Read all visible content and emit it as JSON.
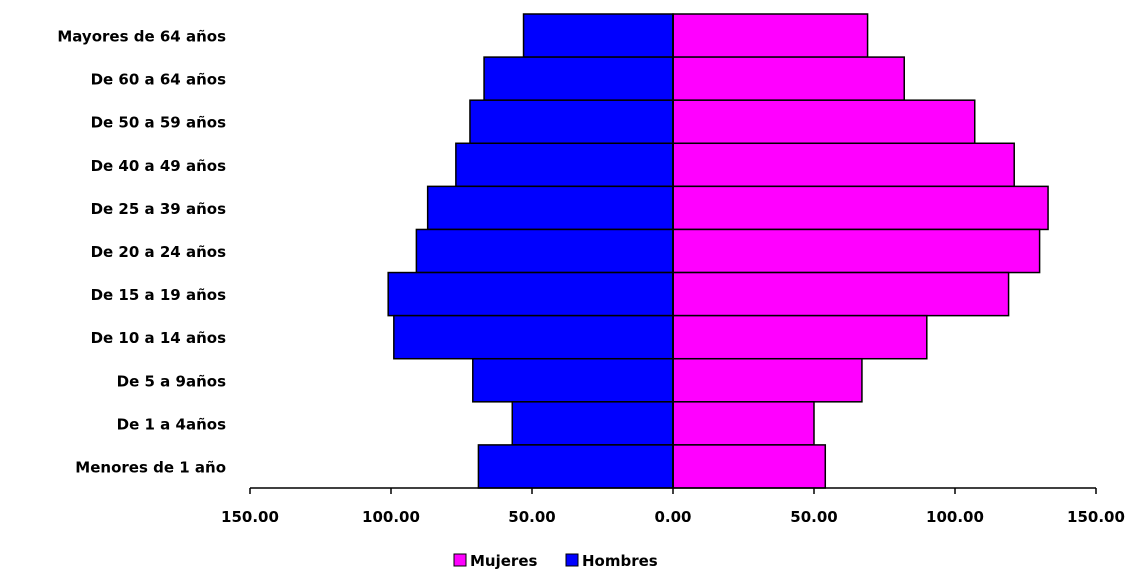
{
  "chart_data": {
    "type": "bar",
    "orientation": "horizontal",
    "layout": "population-pyramid",
    "title": "",
    "xlabel": "",
    "ylabel": "",
    "categories": [
      "Mayores de 64 años",
      "De 60 a 64 años",
      "De 50 a 59 años",
      "De 40 a 49 años",
      "De 25 a 39 años",
      "De 20 a 24 años",
      "De 15 a 19 años",
      "De 10 a 14 años",
      "De 5 a 9años",
      "De 1 a 4años",
      "Menores de 1 año"
    ],
    "series": [
      {
        "name": "Mujeres",
        "color": "#ff00ff",
        "side": "right",
        "values": [
          69,
          82,
          107,
          121,
          133,
          130,
          119,
          90,
          67,
          50,
          54
        ]
      },
      {
        "name": "Hombres",
        "color": "#0000ff",
        "side": "left",
        "values": [
          53,
          67,
          72,
          77,
          87,
          91,
          101,
          99,
          71,
          57,
          69
        ]
      }
    ],
    "xlim": [
      -150,
      150
    ],
    "xticks": [
      -150,
      -100,
      -50,
      0,
      50,
      100,
      150
    ],
    "xtick_labels": [
      "150.00",
      "100.00",
      "50.00",
      "0.00",
      "50.00",
      "100.00",
      "150.00"
    ],
    "grid": false,
    "legend_position": "bottom"
  }
}
